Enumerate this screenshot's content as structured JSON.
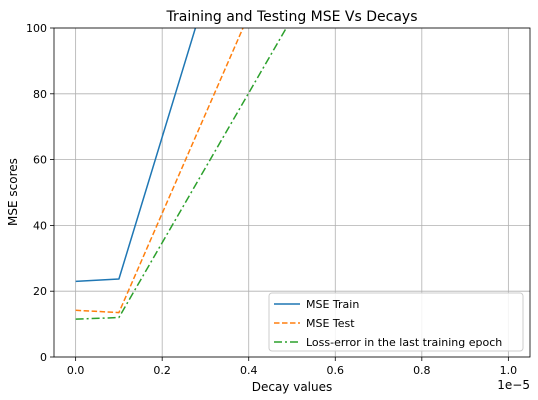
{
  "chart_data": {
    "type": "line",
    "title": "Training and Testing MSE Vs Decays",
    "xlabel": "Decay values",
    "ylabel": "MSE scores",
    "x_offset_label": "1e−5",
    "x_scale": 1e-05,
    "xlim": [
      -5e-07,
      1.05e-05
    ],
    "ylim": [
      0,
      100
    ],
    "x_ticks": [
      0,
      2e-06,
      4e-06,
      6e-06,
      8e-06,
      1e-05
    ],
    "x_tick_labels": [
      "0.0",
      "0.2",
      "0.4",
      "0.6",
      "0.8",
      "1.0"
    ],
    "y_ticks": [
      0,
      20,
      40,
      60,
      80,
      100
    ],
    "y_tick_labels": [
      "0",
      "20",
      "40",
      "60",
      "80",
      "100"
    ],
    "grid": true,
    "legend_position": "lower-right",
    "series": [
      {
        "name": "MSE Train",
        "color": "#1f77b4",
        "style": "solid",
        "x": [
          0,
          1e-06,
          3e-06
        ],
        "y": [
          23,
          23.7,
          110
        ]
      },
      {
        "name": "MSE Test",
        "color": "#ff7f0e",
        "style": "dashed",
        "x": [
          0,
          1e-06,
          4e-06
        ],
        "y": [
          14.2,
          13.5,
          104
        ]
      },
      {
        "name": "Loss-error in the last training epoch",
        "color": "#2ca02c",
        "style": "dashdot",
        "x": [
          0,
          1e-06,
          5e-06
        ],
        "y": [
          11.5,
          12.0,
          103
        ]
      }
    ]
  }
}
